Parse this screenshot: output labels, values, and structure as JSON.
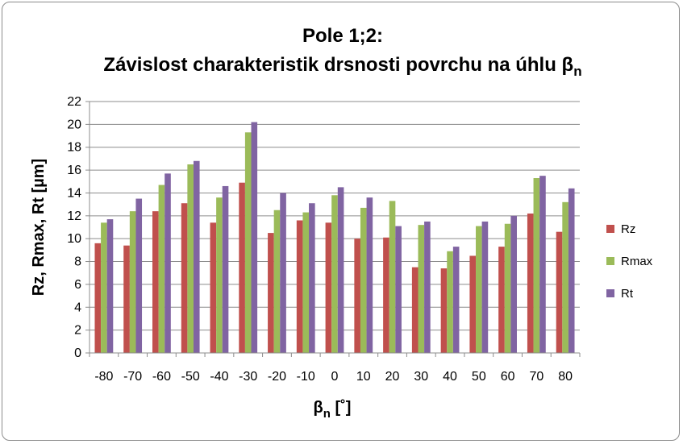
{
  "chart_data": {
    "type": "bar",
    "title_line1": "Pole 1;2:",
    "title_line2": "Závislost charakteristik drsnosti povrchu na úhlu β",
    "title_subscript": "n",
    "xlabel": "β",
    "xlabel_subscript": "n",
    "xlabel_unit": " [˚]",
    "ylabel": "Rz, Rmax, Rt [µm]",
    "ylim": [
      0,
      22
    ],
    "ytick_step": 2,
    "grid": true,
    "legend_position": "right",
    "categories": [
      "-80",
      "-70",
      "-60",
      "-50",
      "-40",
      "-30",
      "-20",
      "-10",
      "0",
      "10",
      "20",
      "30",
      "40",
      "50",
      "60",
      "70",
      "80"
    ],
    "series": [
      {
        "name": "Rz",
        "color": "#c0504d",
        "values": [
          9.6,
          9.4,
          12.4,
          13.1,
          11.4,
          14.9,
          10.5,
          11.6,
          11.4,
          10.0,
          10.1,
          7.5,
          7.4,
          8.5,
          9.3,
          12.2,
          10.6
        ]
      },
      {
        "name": "Rmax",
        "color": "#9bbb59",
        "values": [
          11.4,
          12.4,
          14.7,
          16.5,
          13.6,
          19.3,
          12.5,
          12.3,
          13.8,
          12.7,
          13.3,
          11.2,
          8.9,
          11.1,
          11.3,
          15.3,
          13.2
        ]
      },
      {
        "name": "Rt",
        "color": "#8064a2",
        "values": [
          11.7,
          13.5,
          15.7,
          16.8,
          14.6,
          20.2,
          14.0,
          13.1,
          14.5,
          13.6,
          11.1,
          11.5,
          9.3,
          11.5,
          12.0,
          15.5,
          14.4
        ]
      }
    ]
  }
}
